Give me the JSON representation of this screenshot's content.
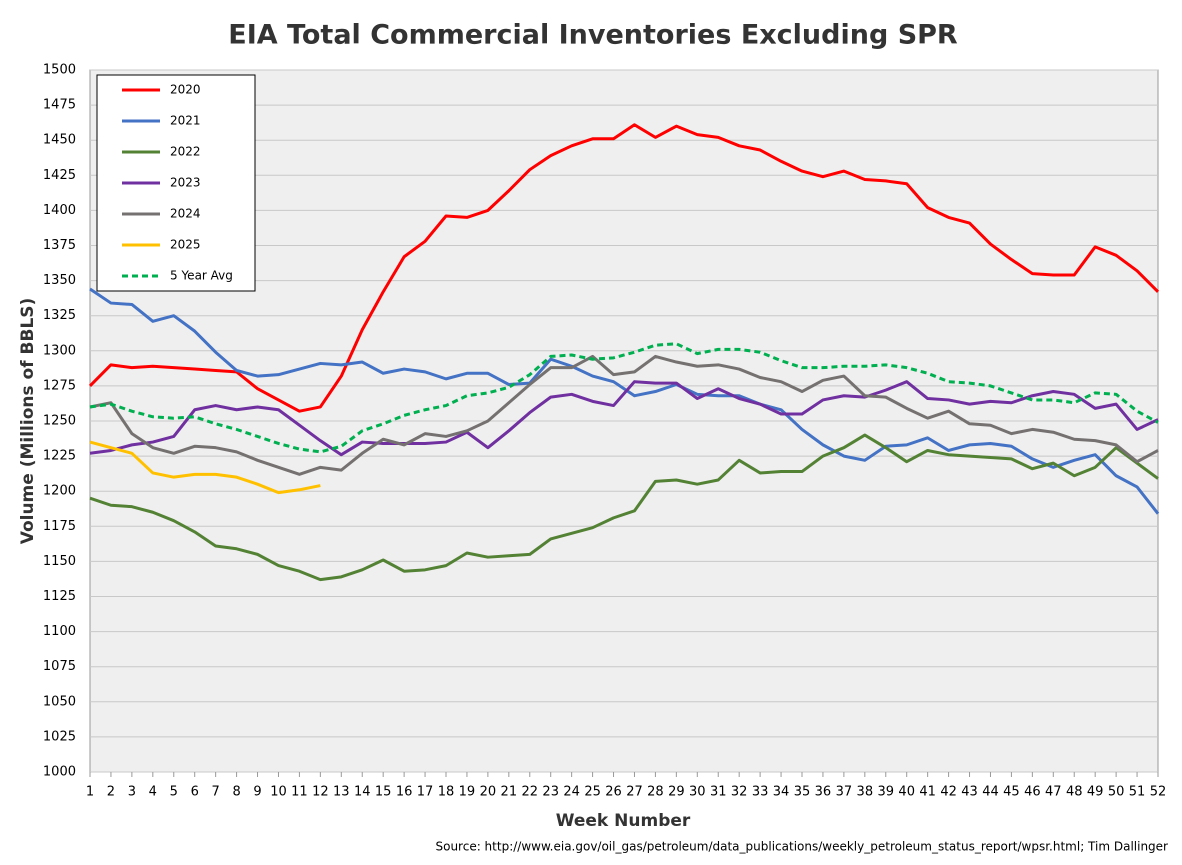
{
  "chart_data": {
    "type": "line",
    "title": "EIA Total Commercial Inventories Excluding SPR",
    "x_label": "Week Number",
    "y_label": "Volume (Millions of BBLS)",
    "source": "Source: http://www.eia.gov/oil_gas/petroleum/data_publications/weekly_petroleum_status_report/wpsr.html; Tim Dallinger",
    "x": [
      1,
      2,
      3,
      4,
      5,
      6,
      7,
      8,
      9,
      10,
      11,
      12,
      13,
      14,
      15,
      16,
      17,
      18,
      19,
      20,
      21,
      22,
      23,
      24,
      25,
      26,
      27,
      28,
      29,
      30,
      31,
      32,
      33,
      34,
      35,
      36,
      37,
      38,
      39,
      40,
      41,
      42,
      43,
      44,
      45,
      46,
      47,
      48,
      49,
      50,
      51,
      52
    ],
    "xlim": [
      1,
      52
    ],
    "xticks": [
      1,
      2,
      3,
      4,
      5,
      6,
      7,
      8,
      9,
      10,
      11,
      12,
      13,
      14,
      15,
      16,
      17,
      18,
      19,
      20,
      21,
      22,
      23,
      24,
      25,
      26,
      27,
      28,
      29,
      30,
      31,
      32,
      33,
      34,
      35,
      36,
      37,
      38,
      39,
      40,
      41,
      42,
      43,
      44,
      45,
      46,
      47,
      48,
      49,
      50,
      51,
      52
    ],
    "ylim": [
      1000,
      1500
    ],
    "yticks": [
      1000,
      1025,
      1050,
      1075,
      1100,
      1125,
      1150,
      1175,
      1200,
      1225,
      1250,
      1275,
      1300,
      1325,
      1350,
      1375,
      1400,
      1425,
      1450,
      1475,
      1500
    ],
    "grid": true,
    "legend": "upper left",
    "series": [
      {
        "name": "2020",
        "color": "#ff0000",
        "style": "solid",
        "values": [
          1275,
          1290,
          1288,
          1289,
          1288,
          1287,
          1286,
          1285,
          1273,
          1265,
          1257,
          1260,
          1282,
          1315,
          1342,
          1367,
          1378,
          1396,
          1395,
          1400,
          1414,
          1429,
          1439,
          1446,
          1451,
          1451,
          1461,
          1452,
          1460,
          1454,
          1452,
          1446,
          1443,
          1435,
          1428,
          1424,
          1428,
          1422,
          1421,
          1419,
          1402,
          1395,
          1391,
          1376,
          1365,
          1355,
          1354,
          1354,
          1374,
          1368,
          1357,
          1342
        ]
      },
      {
        "name": "2021",
        "color": "#4472c4",
        "style": "solid",
        "values": [
          1344,
          1334,
          1333,
          1321,
          1325,
          1314,
          1299,
          1286,
          1282,
          1283,
          1287,
          1291,
          1290,
          1292,
          1284,
          1287,
          1285,
          1280,
          1284,
          1284,
          1276,
          1277,
          1294,
          1289,
          1282,
          1278,
          1268,
          1271,
          1276,
          1269,
          1268,
          1268,
          1262,
          1258,
          1244,
          1233,
          1225,
          1222,
          1232,
          1233,
          1238,
          1229,
          1233,
          1234,
          1232,
          1223,
          1217,
          1222,
          1226,
          1211,
          1203,
          1184
        ]
      },
      {
        "name": "2022",
        "color": "#548235",
        "style": "solid",
        "values": [
          1195,
          1190,
          1189,
          1185,
          1179,
          1171,
          1161,
          1159,
          1155,
          1147,
          1143,
          1137,
          1139,
          1144,
          1151,
          1143,
          1144,
          1147,
          1156,
          1153,
          1154,
          1155,
          1166,
          1170,
          1174,
          1181,
          1186,
          1207,
          1208,
          1205,
          1208,
          1222,
          1213,
          1214,
          1214,
          1225,
          1231,
          1240,
          1231,
          1221,
          1229,
          1226,
          1225,
          1224,
          1223,
          1216,
          1220,
          1211,
          1217,
          1231,
          1220,
          1209
        ]
      },
      {
        "name": "2023",
        "color": "#7030a0",
        "style": "solid",
        "values": [
          1227,
          1229,
          1233,
          1235,
          1239,
          1258,
          1261,
          1258,
          1260,
          1258,
          1247,
          1236,
          1226,
          1235,
          1234,
          1234,
          1234,
          1235,
          1242,
          1231,
          1243,
          1256,
          1267,
          1269,
          1264,
          1261,
          1278,
          1277,
          1277,
          1266,
          1273,
          1266,
          1262,
          1255,
          1255,
          1265,
          1268,
          1267,
          1272,
          1278,
          1266,
          1265,
          1262,
          1264,
          1263,
          1268,
          1271,
          1269,
          1259,
          1262,
          1244,
          1251
        ]
      },
      {
        "name": "2024",
        "color": "#767171",
        "style": "solid",
        "values": [
          1260,
          1263,
          1241,
          1231,
          1227,
          1232,
          1231,
          1228,
          1222,
          1217,
          1212,
          1217,
          1215,
          1227,
          1237,
          1233,
          1241,
          1239,
          1243,
          1250,
          1263,
          1276,
          1288,
          1288,
          1296,
          1283,
          1285,
          1296,
          1292,
          1289,
          1290,
          1287,
          1281,
          1278,
          1271,
          1279,
          1282,
          1268,
          1267,
          1259,
          1252,
          1257,
          1248,
          1247,
          1241,
          1244,
          1242,
          1237,
          1236,
          1233,
          1221,
          1229
        ]
      },
      {
        "name": "2025",
        "color": "#ffc000",
        "style": "solid",
        "values": [
          1235,
          1231,
          1227,
          1213,
          1210,
          1212,
          1212,
          1210,
          1205,
          1199,
          1201,
          1204,
          null,
          null,
          null,
          null,
          null,
          null,
          null,
          null,
          null,
          null,
          null,
          null,
          null,
          null,
          null,
          null,
          null,
          null,
          null,
          null,
          null,
          null,
          null,
          null,
          null,
          null,
          null,
          null,
          null,
          null,
          null,
          null,
          null,
          null,
          null,
          null,
          null,
          null,
          null,
          null
        ]
      },
      {
        "name": "5 Year Avg",
        "color": "#00b050",
        "style": "dashed",
        "values": [
          1260,
          1262,
          1257,
          1253,
          1252,
          1253,
          1248,
          1244,
          1239,
          1234,
          1230,
          1228,
          1232,
          1243,
          1248,
          1254,
          1258,
          1261,
          1268,
          1270,
          1274,
          1283,
          1296,
          1297,
          1294,
          1295,
          1299,
          1304,
          1305,
          1298,
          1301,
          1301,
          1299,
          1293,
          1288,
          1288,
          1289,
          1289,
          1290,
          1288,
          1284,
          1278,
          1277,
          1275,
          1270,
          1265,
          1265,
          1263,
          1270,
          1269,
          1257,
          1249
        ]
      }
    ]
  }
}
